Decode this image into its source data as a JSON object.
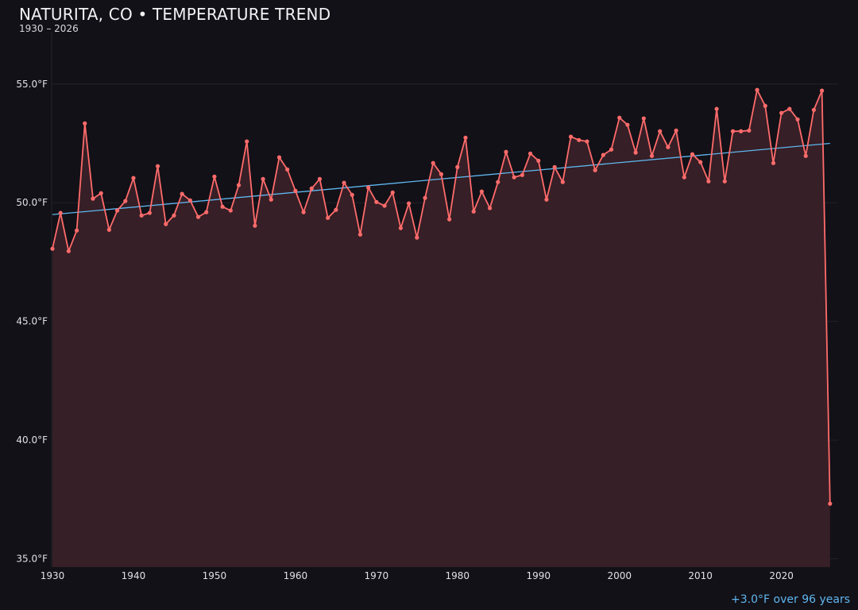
{
  "chart_data": {
    "type": "line",
    "title": "NATURITA, CO • TEMPERATURE TREND",
    "subtitle": "1930 – 2026",
    "xlabel": "",
    "ylabel": "",
    "xlim": [
      1930,
      2027
    ],
    "ylim": [
      34.65,
      57.2
    ],
    "grid": true,
    "x_ticks": [
      "1930",
      "1940",
      "1950",
      "1960",
      "1970",
      "1980",
      "1990",
      "2000",
      "2010",
      "2020"
    ],
    "y_ticks": [
      "35.0°F",
      "40.0°F",
      "45.0°F",
      "50.0°F",
      "55.0°F"
    ],
    "x": [
      1930,
      1931,
      1932,
      1933,
      1934,
      1935,
      1936,
      1937,
      1938,
      1939,
      1940,
      1941,
      1942,
      1943,
      1944,
      1945,
      1946,
      1947,
      1948,
      1949,
      1950,
      1951,
      1952,
      1953,
      1954,
      1955,
      1956,
      1957,
      1958,
      1959,
      1960,
      1961,
      1962,
      1963,
      1964,
      1965,
      1966,
      1967,
      1968,
      1969,
      1970,
      1971,
      1972,
      1973,
      1974,
      1975,
      1976,
      1977,
      1978,
      1979,
      1980,
      1981,
      1982,
      1983,
      1984,
      1985,
      1986,
      1987,
      1988,
      1989,
      1990,
      1991,
      1992,
      1993,
      1994,
      1995,
      1996,
      1997,
      1998,
      1999,
      2000,
      2001,
      2002,
      2003,
      2004,
      2005,
      2006,
      2007,
      2008,
      2009,
      2010,
      2011,
      2012,
      2013,
      2014,
      2015,
      2016,
      2017,
      2018,
      2019,
      2020,
      2021,
      2022,
      2023,
      2024,
      2025,
      2026
    ],
    "series": [
      {
        "values": [
          48.06,
          49.57,
          47.96,
          48.83,
          53.34,
          50.17,
          50.4,
          48.86,
          49.67,
          50.07,
          51.04,
          49.46,
          49.57,
          51.54,
          49.1,
          49.46,
          50.37,
          50.1,
          49.4,
          49.6,
          51.1,
          49.83,
          49.67,
          50.74,
          52.58,
          49.03,
          51.0,
          50.13,
          51.91,
          51.4,
          50.5,
          49.6,
          50.6,
          51.0,
          49.36,
          49.7,
          50.84,
          50.33,
          48.66,
          50.64,
          50.03,
          49.87,
          50.43,
          48.93,
          49.97,
          48.53,
          50.2,
          51.67,
          51.2,
          49.3,
          51.5,
          52.74,
          49.63,
          50.47,
          49.77,
          50.87,
          52.14,
          51.07,
          51.17,
          52.07,
          51.77,
          50.13,
          51.5,
          50.87,
          52.78,
          52.64,
          52.58,
          51.37,
          52.01,
          52.24,
          53.58,
          53.28,
          52.11,
          53.55,
          51.97,
          53.01,
          52.34,
          53.04,
          51.07,
          52.04,
          51.71,
          50.9,
          53.95,
          50.9,
          53.01,
          53.01,
          53.04,
          54.75,
          54.08,
          51.67,
          53.78,
          53.95,
          53.51,
          51.97,
          53.91,
          54.72,
          37.32
        ],
        "color": "#ff6b6b"
      }
    ],
    "trend": {
      "x": [
        1930,
        2026
      ],
      "y": [
        49.5,
        52.5
      ],
      "color": "#5fb6f0"
    },
    "fill_color": "#361f26",
    "annotation": "+3.0°F over 96 years"
  }
}
